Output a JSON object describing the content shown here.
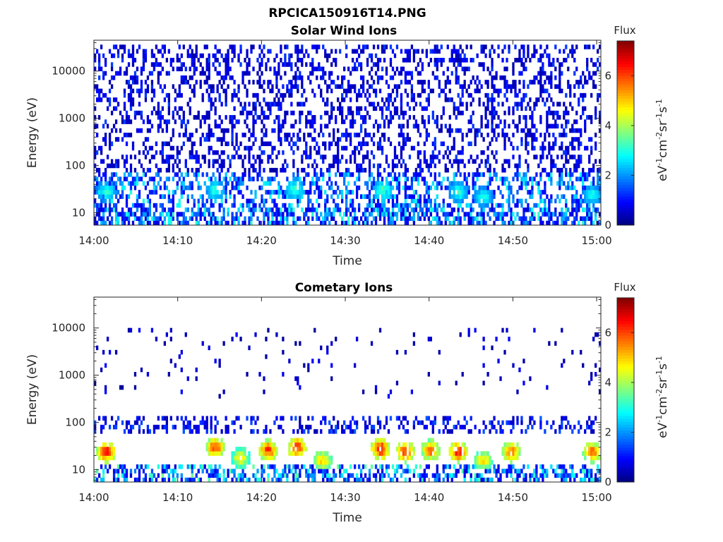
{
  "figure": {
    "title": "RPCICA150916T14.PNG"
  },
  "chart_data": [
    {
      "type": "heatmap",
      "title": "Solar Wind Ions",
      "xlabel": "Time",
      "ylabel": "Energy (eV)",
      "x_ticks": [
        "14:00",
        "14:10",
        "14:20",
        "14:30",
        "14:40",
        "14:50",
        "15:00"
      ],
      "y_scale": "log",
      "y_ticks": [
        10,
        100,
        1000,
        10000
      ],
      "y_tick_labels": [
        "10",
        "100",
        "1000",
        "10000"
      ],
      "ylim": [
        5.5,
        45000
      ],
      "xlim_minutes": [
        0,
        60.5
      ],
      "colorbar": {
        "title": "Flux",
        "label": "eV-1cm-2sr-1s-1",
        "range": [
          0,
          7.4
        ],
        "ticks": [
          0,
          2,
          4,
          6
        ],
        "colormap": "jet"
      },
      "grid": false,
      "regions": [
        {
          "desc": "sparse low counts",
          "t": [
            0,
            60.5
          ],
          "e": [
            80,
            40000
          ],
          "flux": [
            0.3,
            1.4
          ],
          "density": 0.34
        },
        {
          "desc": "low-energy band",
          "t": [
            0,
            60.5
          ],
          "e": [
            12,
            80
          ],
          "flux": [
            0.8,
            3.0
          ],
          "density": 0.45
        },
        {
          "desc": "lowest channels",
          "t": [
            0,
            60.5
          ],
          "e": [
            5.8,
            12
          ],
          "flux": [
            0.6,
            3.2
          ],
          "density": 0.6
        }
      ],
      "hotspots": [
        {
          "t": 1.5,
          "e": 28,
          "flux": 3.3
        },
        {
          "t": 14.5,
          "e": 30,
          "flux": 3.3
        },
        {
          "t": 24.0,
          "e": 32,
          "flux": 3.4
        },
        {
          "t": 34.5,
          "e": 30,
          "flux": 3.6
        },
        {
          "t": 43.5,
          "e": 28,
          "flux": 3.3
        },
        {
          "t": 46.5,
          "e": 22,
          "flux": 3.2
        },
        {
          "t": 59.5,
          "e": 24,
          "flux": 3.2
        }
      ]
    },
    {
      "type": "heatmap",
      "title": "Cometary Ions",
      "xlabel": "Time",
      "ylabel": "Energy (eV)",
      "x_ticks": [
        "14:00",
        "14:10",
        "14:20",
        "14:30",
        "14:40",
        "14:50",
        "15:00"
      ],
      "y_scale": "log",
      "y_ticks": [
        10,
        100,
        1000,
        10000
      ],
      "y_tick_labels": [
        "10",
        "100",
        "1000",
        "10000"
      ],
      "ylim": [
        5.5,
        45000
      ],
      "xlim_minutes": [
        0,
        60.5
      ],
      "colorbar": {
        "title": "Flux",
        "label": "eV-1cm-2sr-1s-1",
        "range": [
          0,
          7.4
        ],
        "ticks": [
          0,
          2,
          4,
          6
        ],
        "colormap": "jet"
      },
      "grid": false,
      "regions": [
        {
          "desc": "sparse high-energy dots",
          "t": [
            0,
            60.5
          ],
          "e": [
            300,
            10000
          ],
          "flux": [
            0.2,
            1.0
          ],
          "density": 0.04
        },
        {
          "desc": "mid band",
          "t": [
            0,
            60.5
          ],
          "e": [
            60,
            150
          ],
          "flux": [
            0.4,
            1.6
          ],
          "density": 0.32
        },
        {
          "desc": "lowest channels",
          "t": [
            0,
            60.5
          ],
          "e": [
            5.8,
            12
          ],
          "flux": [
            0.6,
            3.6
          ],
          "density": 0.5
        }
      ],
      "hotspots": [
        {
          "t": 1.5,
          "e": 24,
          "flux": 6.8
        },
        {
          "t": 14.5,
          "e": 30,
          "flux": 6.5
        },
        {
          "t": 17.5,
          "e": 18,
          "flux": 5.2
        },
        {
          "t": 20.8,
          "e": 26,
          "flux": 6.6
        },
        {
          "t": 24.2,
          "e": 30,
          "flux": 6.7
        },
        {
          "t": 27.3,
          "e": 16,
          "flux": 5.5
        },
        {
          "t": 34.2,
          "e": 28,
          "flux": 7.0
        },
        {
          "t": 37.2,
          "e": 24,
          "flux": 6.6
        },
        {
          "t": 40.2,
          "e": 26,
          "flux": 6.2
        },
        {
          "t": 43.5,
          "e": 24,
          "flux": 6.8
        },
        {
          "t": 46.5,
          "e": 16,
          "flux": 5.4
        },
        {
          "t": 49.8,
          "e": 24,
          "flux": 6.3
        },
        {
          "t": 59.5,
          "e": 24,
          "flux": 6.3
        }
      ]
    }
  ]
}
